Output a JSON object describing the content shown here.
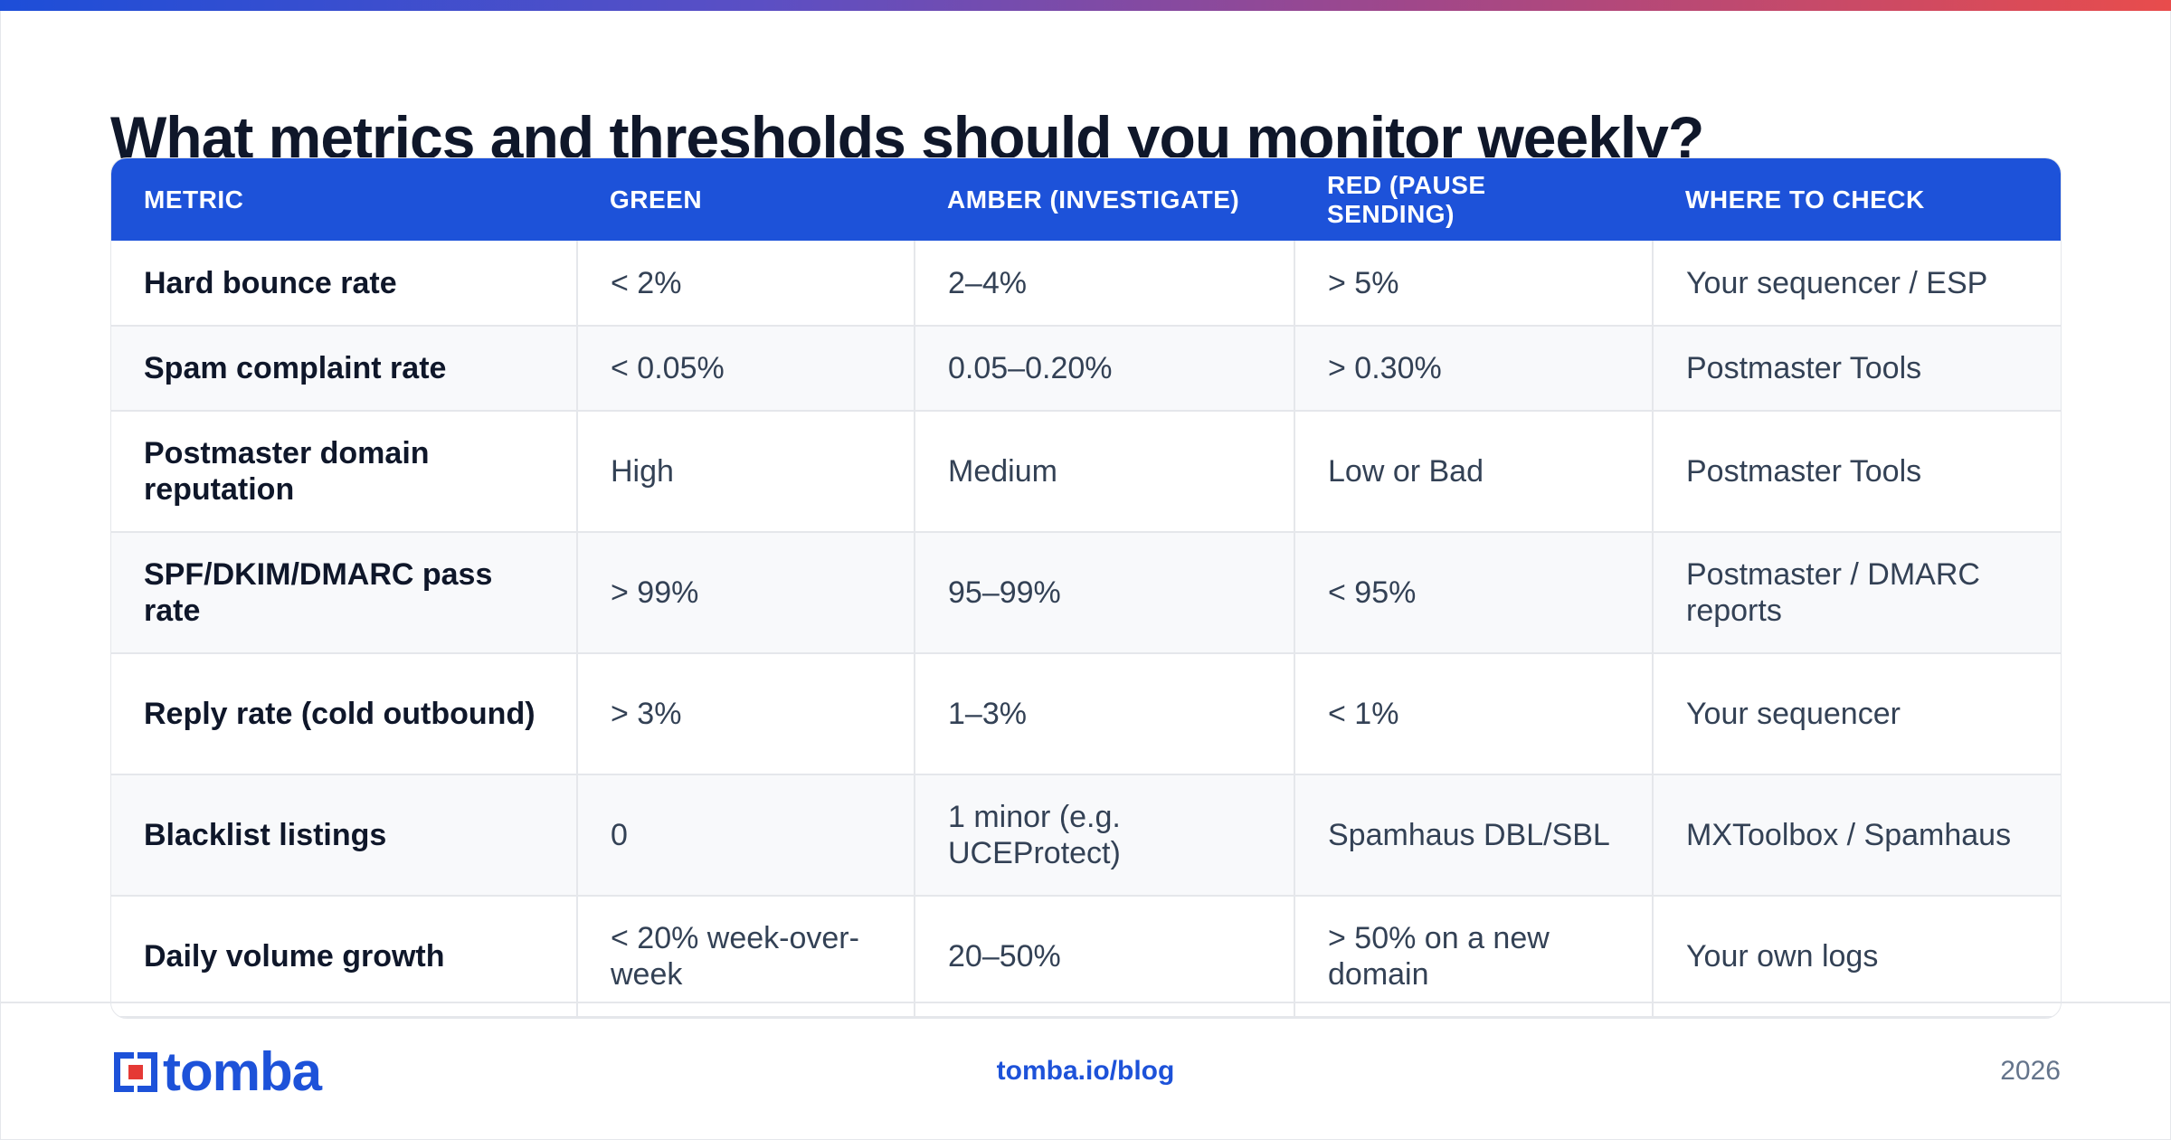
{
  "title": "What metrics and thresholds should you monitor weekly?",
  "table": {
    "headers": [
      "METRIC",
      "GREEN",
      "AMBER (INVESTIGATE)",
      "RED (PAUSE SENDING)",
      "WHERE TO CHECK"
    ],
    "rows": [
      [
        "Hard bounce rate",
        "< 2%",
        "2–4%",
        "> 5%",
        "Your sequencer / ESP"
      ],
      [
        "Spam complaint rate",
        "< 0.05%",
        "0.05–0.20%",
        "> 0.30%",
        "Postmaster Tools"
      ],
      [
        "Postmaster domain reputation",
        "High",
        "Medium",
        "Low or Bad",
        "Postmaster Tools"
      ],
      [
        "SPF/DKIM/DMARC pass rate",
        "> 99%",
        "95–99%",
        "< 95%",
        "Postmaster / DMARC reports"
      ],
      [
        "Reply rate (cold outbound)",
        "> 3%",
        "1–3%",
        "< 1%",
        "Your sequencer"
      ],
      [
        "Blacklist listings",
        "0",
        "1 minor (e.g. UCEProtect)",
        "Spamhaus DBL/SBL",
        "MXToolbox / Spamhaus"
      ],
      [
        "Daily volume growth",
        "< 20% week-over-week",
        "20–50%",
        "> 50% on a new domain",
        "Your own logs"
      ]
    ]
  },
  "footer": {
    "logo_text": "tomba",
    "link": "tomba.io/blog",
    "year": "2026"
  },
  "colors": {
    "accent": "#1d52d9",
    "gradient_start": "#1d4ed8",
    "gradient_end": "#e84c4c"
  },
  "icons": {
    "logo": "tomba-logo-icon"
  }
}
